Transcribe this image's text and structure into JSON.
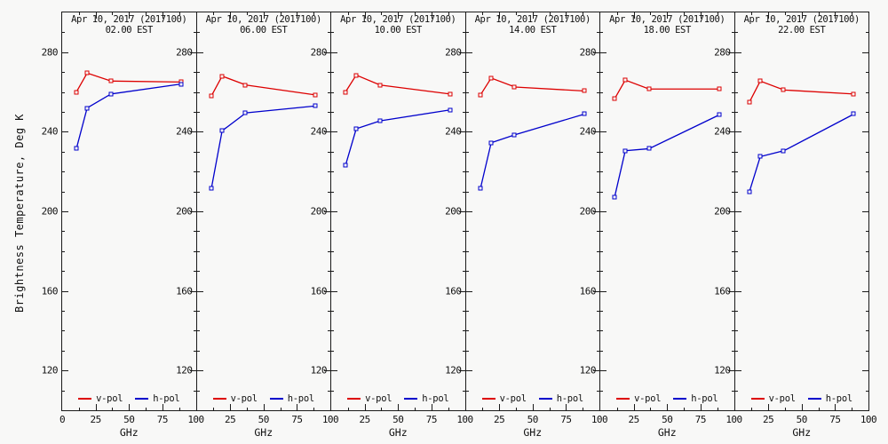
{
  "figure": {
    "background": "#f8f8f7",
    "axis_color": "#1a1a1a",
    "ylabel": "Brightness Temperature, Deg K",
    "xlabel": "GHz",
    "legend": [
      {
        "label": "v-pol",
        "color": "#dd0000"
      },
      {
        "label": "h-pol",
        "color": "#0000cc"
      }
    ]
  },
  "chart_data": [
    {
      "type": "line",
      "title": "Apr 10, 2017 (2017100)",
      "subtitle": "02.00 EST",
      "xlabel": "GHz",
      "x_ghz": [
        10.65,
        18.7,
        36.5,
        89
      ],
      "xlim": [
        0,
        100
      ],
      "ylim": [
        100,
        300
      ],
      "xticks": [
        0,
        25,
        50,
        75,
        100
      ],
      "yticks": [
        120,
        160,
        200,
        240,
        280
      ],
      "series": [
        {
          "name": "v-pol",
          "color": "#dd0000",
          "values": [
            260,
            269.5,
            265.5,
            265
          ]
        },
        {
          "name": "h-pol",
          "color": "#0000cc",
          "values": [
            231.5,
            252,
            259,
            264
          ]
        }
      ]
    },
    {
      "type": "line",
      "title": "Apr 10, 2017 (2017100)",
      "subtitle": "06.00 EST",
      "xlabel": "GHz",
      "x_ghz": [
        10.65,
        18.7,
        36.5,
        89
      ],
      "xlim": [
        0,
        100
      ],
      "ylim": [
        100,
        300
      ],
      "xticks": [
        0,
        25,
        50,
        75,
        100
      ],
      "yticks": [
        120,
        160,
        200,
        240,
        280
      ],
      "series": [
        {
          "name": "v-pol",
          "color": "#dd0000",
          "values": [
            258,
            268,
            263.5,
            258.5
          ]
        },
        {
          "name": "h-pol",
          "color": "#0000cc",
          "values": [
            211.5,
            240.5,
            249.5,
            253
          ]
        }
      ]
    },
    {
      "type": "line",
      "title": "Apr 10, 2017 (2017100)",
      "subtitle": "10.00 EST",
      "xlabel": "GHz",
      "x_ghz": [
        10.65,
        18.7,
        36.5,
        89
      ],
      "xlim": [
        0,
        100
      ],
      "ylim": [
        100,
        300
      ],
      "xticks": [
        0,
        25,
        50,
        75,
        100
      ],
      "yticks": [
        120,
        160,
        200,
        240,
        280
      ],
      "series": [
        {
          "name": "v-pol",
          "color": "#dd0000",
          "values": [
            260,
            268.5,
            263.5,
            259
          ]
        },
        {
          "name": "h-pol",
          "color": "#0000cc",
          "values": [
            223,
            241.5,
            245.5,
            251
          ]
        }
      ]
    },
    {
      "type": "line",
      "title": "Apr 10, 2017 (2017100)",
      "subtitle": "14.00 EST",
      "xlabel": "GHz",
      "x_ghz": [
        10.65,
        18.7,
        36.5,
        89
      ],
      "xlim": [
        0,
        100
      ],
      "ylim": [
        100,
        300
      ],
      "xticks": [
        0,
        25,
        50,
        75,
        100
      ],
      "yticks": [
        120,
        160,
        200,
        240,
        280
      ],
      "series": [
        {
          "name": "v-pol",
          "color": "#dd0000",
          "values": [
            258.5,
            267,
            262.5,
            260.5
          ]
        },
        {
          "name": "h-pol",
          "color": "#0000cc",
          "values": [
            211.5,
            234.5,
            238.5,
            249
          ]
        }
      ]
    },
    {
      "type": "line",
      "title": "Apr 10, 2017 (2017100)",
      "subtitle": "18.00 EST",
      "xlabel": "GHz",
      "x_ghz": [
        10.65,
        18.7,
        36.5,
        89
      ],
      "xlim": [
        0,
        100
      ],
      "ylim": [
        100,
        300
      ],
      "xticks": [
        0,
        25,
        50,
        75,
        100
      ],
      "yticks": [
        120,
        160,
        200,
        240,
        280
      ],
      "series": [
        {
          "name": "v-pol",
          "color": "#dd0000",
          "values": [
            256.5,
            266,
            261.5,
            261.5
          ]
        },
        {
          "name": "h-pol",
          "color": "#0000cc",
          "values": [
            207,
            230.5,
            231.5,
            248.5
          ]
        }
      ]
    },
    {
      "type": "line",
      "title": "Apr 10, 2017 (2017100)",
      "subtitle": "22.00 EST",
      "xlabel": "GHz",
      "x_ghz": [
        10.65,
        18.7,
        36.5,
        89
      ],
      "xlim": [
        0,
        100
      ],
      "ylim": [
        100,
        300
      ],
      "xticks": [
        0,
        25,
        50,
        75,
        100
      ],
      "yticks": [
        120,
        160,
        200,
        240,
        280
      ],
      "series": [
        {
          "name": "v-pol",
          "color": "#dd0000",
          "values": [
            255,
            265.5,
            261,
            259
          ]
        },
        {
          "name": "h-pol",
          "color": "#0000cc",
          "values": [
            210,
            227.5,
            230.5,
            249
          ]
        }
      ]
    }
  ]
}
